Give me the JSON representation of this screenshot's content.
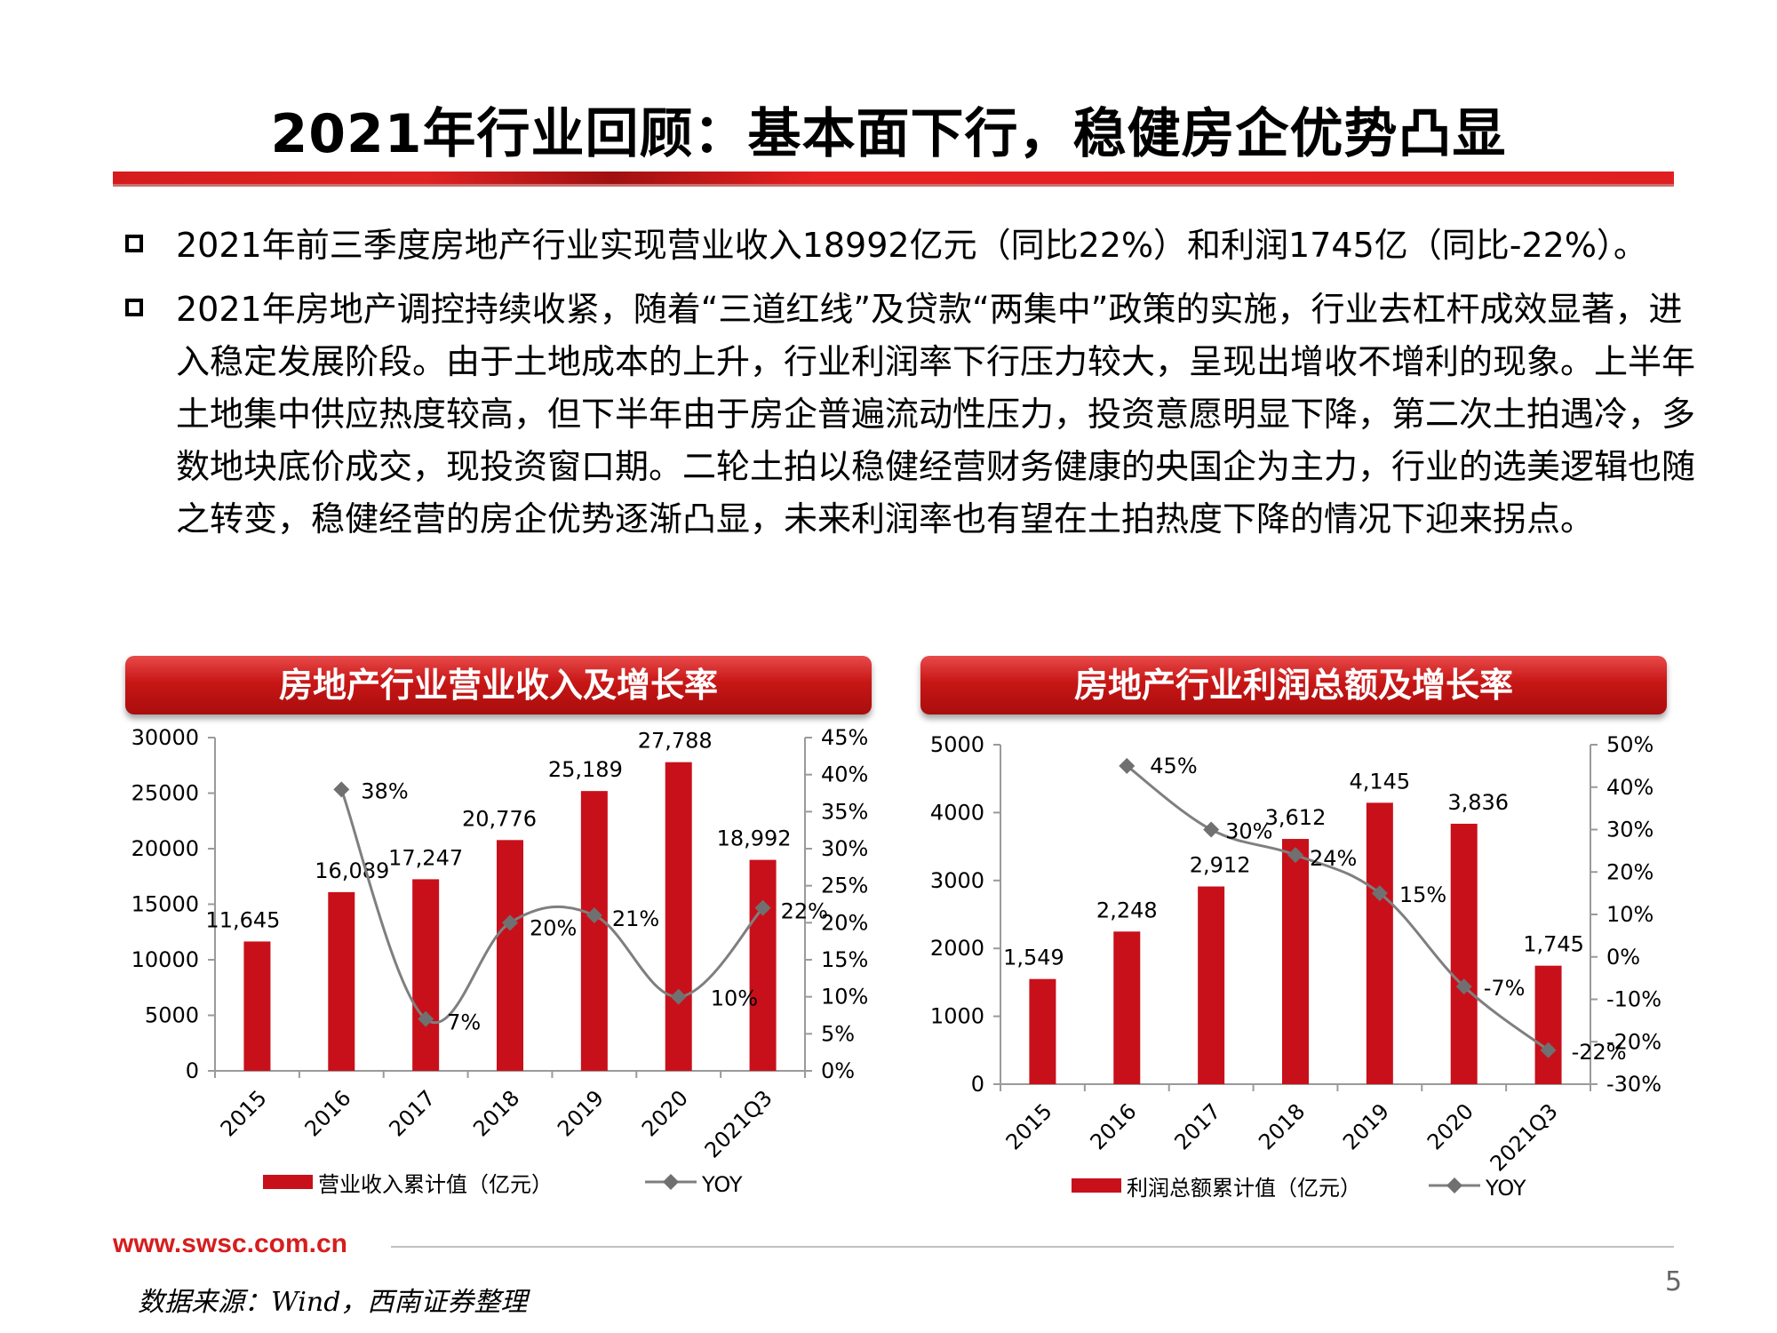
{
  "title": "2021年行业回顾：基本面下行，稳健房企优势凸显",
  "bullets": [
    "2021年前三季度房地产行业实现营业收入18992亿元（同比22%）和利润1745亿（同比-22%）。",
    "2021年房地产调控持续收紧，随着“三道红线”及贷款“两集中”政策的实施，行业去杠杆成效显著，进入稳定发展阶段。由于土地成本的上升，行业利润率下行压力较大，呈现出增收不增利的现象。上半年土地集中供应热度较高，但下半年由于房企普遍流动性压力，投资意愿明显下降，第二次土拍遇冷，多数地块底价成交，现投资窗口期。二轮土拍以稳健经营财务健康的央国企为主力，行业的选美逻辑也随之转变，稳健经营的房企优势逐渐凸显，未来利润率也有望在土拍热度下降的情况下迎来拐点。"
  ],
  "colors": {
    "bar": "#c8101a",
    "line": "#7f7f7f",
    "accent": "#d61e1e"
  },
  "chart_data": [
    {
      "type": "bar",
      "title": "房地产行业营业收入及增长率",
      "categories": [
        "2015",
        "2016",
        "2017",
        "2018",
        "2019",
        "2020",
        "2021Q3"
      ],
      "series": [
        {
          "name": "营业收入累计值（亿元）",
          "type": "bar",
          "axis": "left",
          "values": [
            11645,
            16089,
            17247,
            20776,
            25189,
            27788,
            18992
          ],
          "labels": [
            "11,645",
            "16,089",
            "17,247",
            "20,776",
            "25,189",
            "27,788",
            "18,992"
          ]
        },
        {
          "name": "YOY",
          "type": "line",
          "axis": "right",
          "values": [
            null,
            38,
            7,
            20,
            21,
            10,
            22
          ],
          "labels": [
            "",
            "38%",
            "7%",
            "20%",
            "21%",
            "10%",
            "22%"
          ]
        }
      ],
      "left_axis": {
        "min": 0,
        "max": 30000,
        "ticks": [
          "0",
          "5000",
          "10000",
          "15000",
          "20000",
          "25000",
          "30000"
        ]
      },
      "right_axis": {
        "min": 0,
        "max": 45,
        "ticks": [
          "0%",
          "5%",
          "10%",
          "15%",
          "20%",
          "25%",
          "30%",
          "35%",
          "40%",
          "45%"
        ]
      },
      "legend": "bottom"
    },
    {
      "type": "bar",
      "title": "房地产行业利润总额及增长率",
      "categories": [
        "2015",
        "2016",
        "2017",
        "2018",
        "2019",
        "2020",
        "2021Q3"
      ],
      "series": [
        {
          "name": "利润总额累计值（亿元）",
          "type": "bar",
          "axis": "left",
          "values": [
            1549,
            2248,
            2912,
            3612,
            4145,
            3836,
            1745
          ],
          "labels": [
            "1,549",
            "2,248",
            "2,912",
            "3,612",
            "4,145",
            "3,836",
            "1,745"
          ]
        },
        {
          "name": "YOY",
          "type": "line",
          "axis": "right",
          "values": [
            null,
            45,
            30,
            24,
            15,
            -7,
            -22
          ],
          "labels": [
            "",
            "45%",
            "30%",
            "24%",
            "15%",
            "-7%",
            "-22%"
          ]
        }
      ],
      "left_axis": {
        "min": 0,
        "max": 5000,
        "ticks": [
          "0",
          "1000",
          "2000",
          "3000",
          "4000",
          "5000"
        ]
      },
      "right_axis": {
        "min": -30,
        "max": 50,
        "ticks": [
          "-30%",
          "-20%",
          "-10%",
          "0%",
          "10%",
          "20%",
          "30%",
          "40%",
          "50%"
        ]
      },
      "legend": "bottom"
    }
  ],
  "footer": {
    "url": "www.swsc.com.cn",
    "source": "数据来源：Wind，西南证券整理",
    "page_number": "5"
  }
}
